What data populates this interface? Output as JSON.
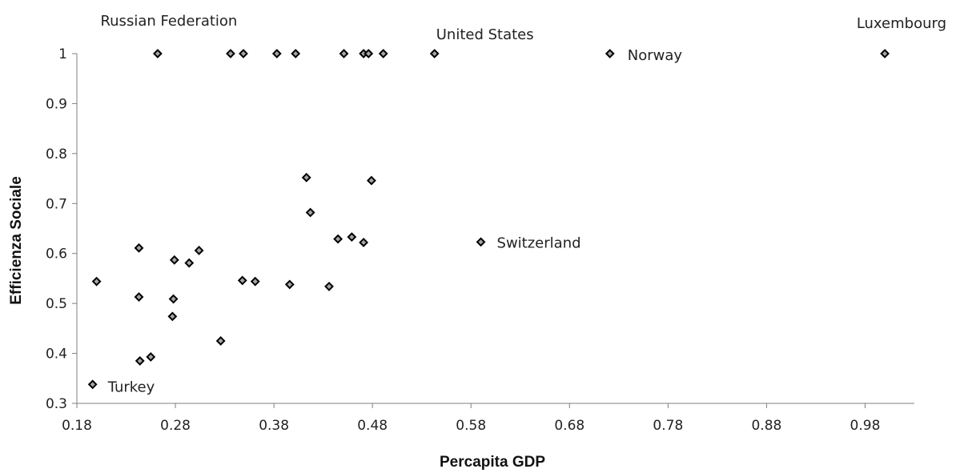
{
  "chart_data": {
    "type": "scatter",
    "title": "",
    "xlabel": "Percapita GDP",
    "ylabel": "Efficienza Sociale",
    "xlim": [
      0.18,
      1.03
    ],
    "ylim": [
      0.3,
      1.0
    ],
    "x_ticks": [
      "0.18",
      "0.28",
      "0.38",
      "0.48",
      "0.58",
      "0.68",
      "0.78",
      "0.88",
      "0.98"
    ],
    "y_ticks": [
      "0.3",
      "0.4",
      "0.5",
      "0.6",
      "0.7",
      "0.8",
      "0.9",
      "1"
    ],
    "grid": false,
    "legend": "none",
    "marker_color": "#a6a6a6",
    "marker_edge_color": "#000000",
    "points": [
      {
        "x": 0.262,
        "y": 1.0
      },
      {
        "x": 0.336,
        "y": 1.0
      },
      {
        "x": 0.349,
        "y": 1.0
      },
      {
        "x": 0.383,
        "y": 1.0
      },
      {
        "x": 0.402,
        "y": 1.0
      },
      {
        "x": 0.451,
        "y": 1.0
      },
      {
        "x": 0.471,
        "y": 1.0
      },
      {
        "x": 0.476,
        "y": 1.0
      },
      {
        "x": 0.491,
        "y": 1.0
      },
      {
        "x": 0.543,
        "y": 1.0
      },
      {
        "x": 0.721,
        "y": 1.0
      },
      {
        "x": 1.0,
        "y": 1.0
      },
      {
        "x": 0.413,
        "y": 0.752
      },
      {
        "x": 0.479,
        "y": 0.746
      },
      {
        "x": 0.417,
        "y": 0.682
      },
      {
        "x": 0.445,
        "y": 0.629
      },
      {
        "x": 0.459,
        "y": 0.633
      },
      {
        "x": 0.471,
        "y": 0.622
      },
      {
        "x": 0.59,
        "y": 0.623
      },
      {
        "x": 0.243,
        "y": 0.611
      },
      {
        "x": 0.304,
        "y": 0.606
      },
      {
        "x": 0.279,
        "y": 0.587
      },
      {
        "x": 0.294,
        "y": 0.581
      },
      {
        "x": 0.348,
        "y": 0.546
      },
      {
        "x": 0.361,
        "y": 0.544
      },
      {
        "x": 0.396,
        "y": 0.538
      },
      {
        "x": 0.436,
        "y": 0.534
      },
      {
        "x": 0.2,
        "y": 0.544
      },
      {
        "x": 0.243,
        "y": 0.513
      },
      {
        "x": 0.278,
        "y": 0.509
      },
      {
        "x": 0.277,
        "y": 0.474
      },
      {
        "x": 0.326,
        "y": 0.425
      },
      {
        "x": 0.255,
        "y": 0.393
      },
      {
        "x": 0.244,
        "y": 0.385
      },
      {
        "x": 0.196,
        "y": 0.338
      }
    ],
    "annotations": [
      {
        "text": "Russian Federation",
        "x": 0.262,
        "y": 1.0
      },
      {
        "text": "United States",
        "x": 0.543,
        "y": 1.0
      },
      {
        "text": "Norway",
        "x": 0.721,
        "y": 1.0
      },
      {
        "text": "Luxembourg",
        "x": 1.0,
        "y": 1.0
      },
      {
        "text": "Switzerland",
        "x": 0.59,
        "y": 0.623
      },
      {
        "text": "Turkey",
        "x": 0.196,
        "y": 0.338
      }
    ]
  }
}
